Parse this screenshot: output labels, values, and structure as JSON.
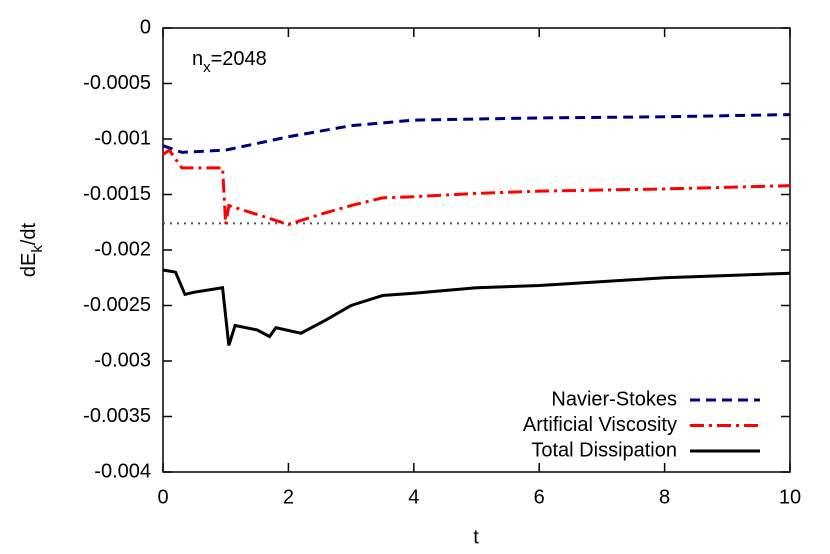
{
  "chart_data": {
    "type": "line",
    "annotation": {
      "base": "n",
      "sub": "x",
      "rest": "=2048"
    },
    "xlabel": "t",
    "ylabel": {
      "base": "dE",
      "sub": "k",
      "rest": "/dt"
    },
    "xlim": [
      0,
      10
    ],
    "xticks": [
      0,
      2,
      4,
      6,
      8,
      10
    ],
    "ylim": [
      -0.004,
      0
    ],
    "yticks": [
      0,
      -0.0005,
      -0.001,
      -0.0015,
      -0.002,
      -0.0025,
      -0.003,
      -0.0035,
      -0.004
    ],
    "legend": "lower right",
    "reference_line": {
      "value": -0.00176,
      "color": "#555555"
    },
    "series": [
      {
        "name": "Navier-Stokes",
        "color": "#00007f",
        "x": [
          0,
          0.3,
          1,
          2,
          3,
          4,
          6,
          8,
          10
        ],
        "values": [
          -0.00106,
          -0.00112,
          -0.0011,
          -0.00098,
          -0.00088,
          -0.00083,
          -0.00081,
          -0.0008,
          -0.00078
        ]
      },
      {
        "name": "Artificial Viscosity",
        "color": "#ff0000",
        "x": [
          0,
          0.1,
          0.3,
          0.95,
          1.0,
          1.05,
          1.5,
          2.0,
          2.5,
          3,
          3.5,
          4,
          5,
          6,
          8,
          10
        ],
        "values": [
          -0.00114,
          -0.0011,
          -0.00126,
          -0.00126,
          -0.00177,
          -0.0016,
          -0.00168,
          -0.00177,
          -0.00168,
          -0.0016,
          -0.00153,
          -0.00152,
          -0.00149,
          -0.00147,
          -0.00145,
          -0.00142
        ]
      },
      {
        "name": "Total Dissipation",
        "color": "#000000",
        "x": [
          0,
          0.2,
          0.35,
          0.5,
          0.95,
          1.05,
          1.15,
          1.5,
          1.7,
          1.8,
          2.2,
          2.6,
          3,
          3.5,
          4,
          5,
          6,
          8,
          10
        ],
        "values": [
          -0.00218,
          -0.0022,
          -0.0024,
          -0.00238,
          -0.00234,
          -0.00286,
          -0.00268,
          -0.00272,
          -0.00278,
          -0.0027,
          -0.00275,
          -0.00263,
          -0.0025,
          -0.00241,
          -0.00239,
          -0.00234,
          -0.00232,
          -0.00225,
          -0.00221
        ]
      }
    ]
  }
}
